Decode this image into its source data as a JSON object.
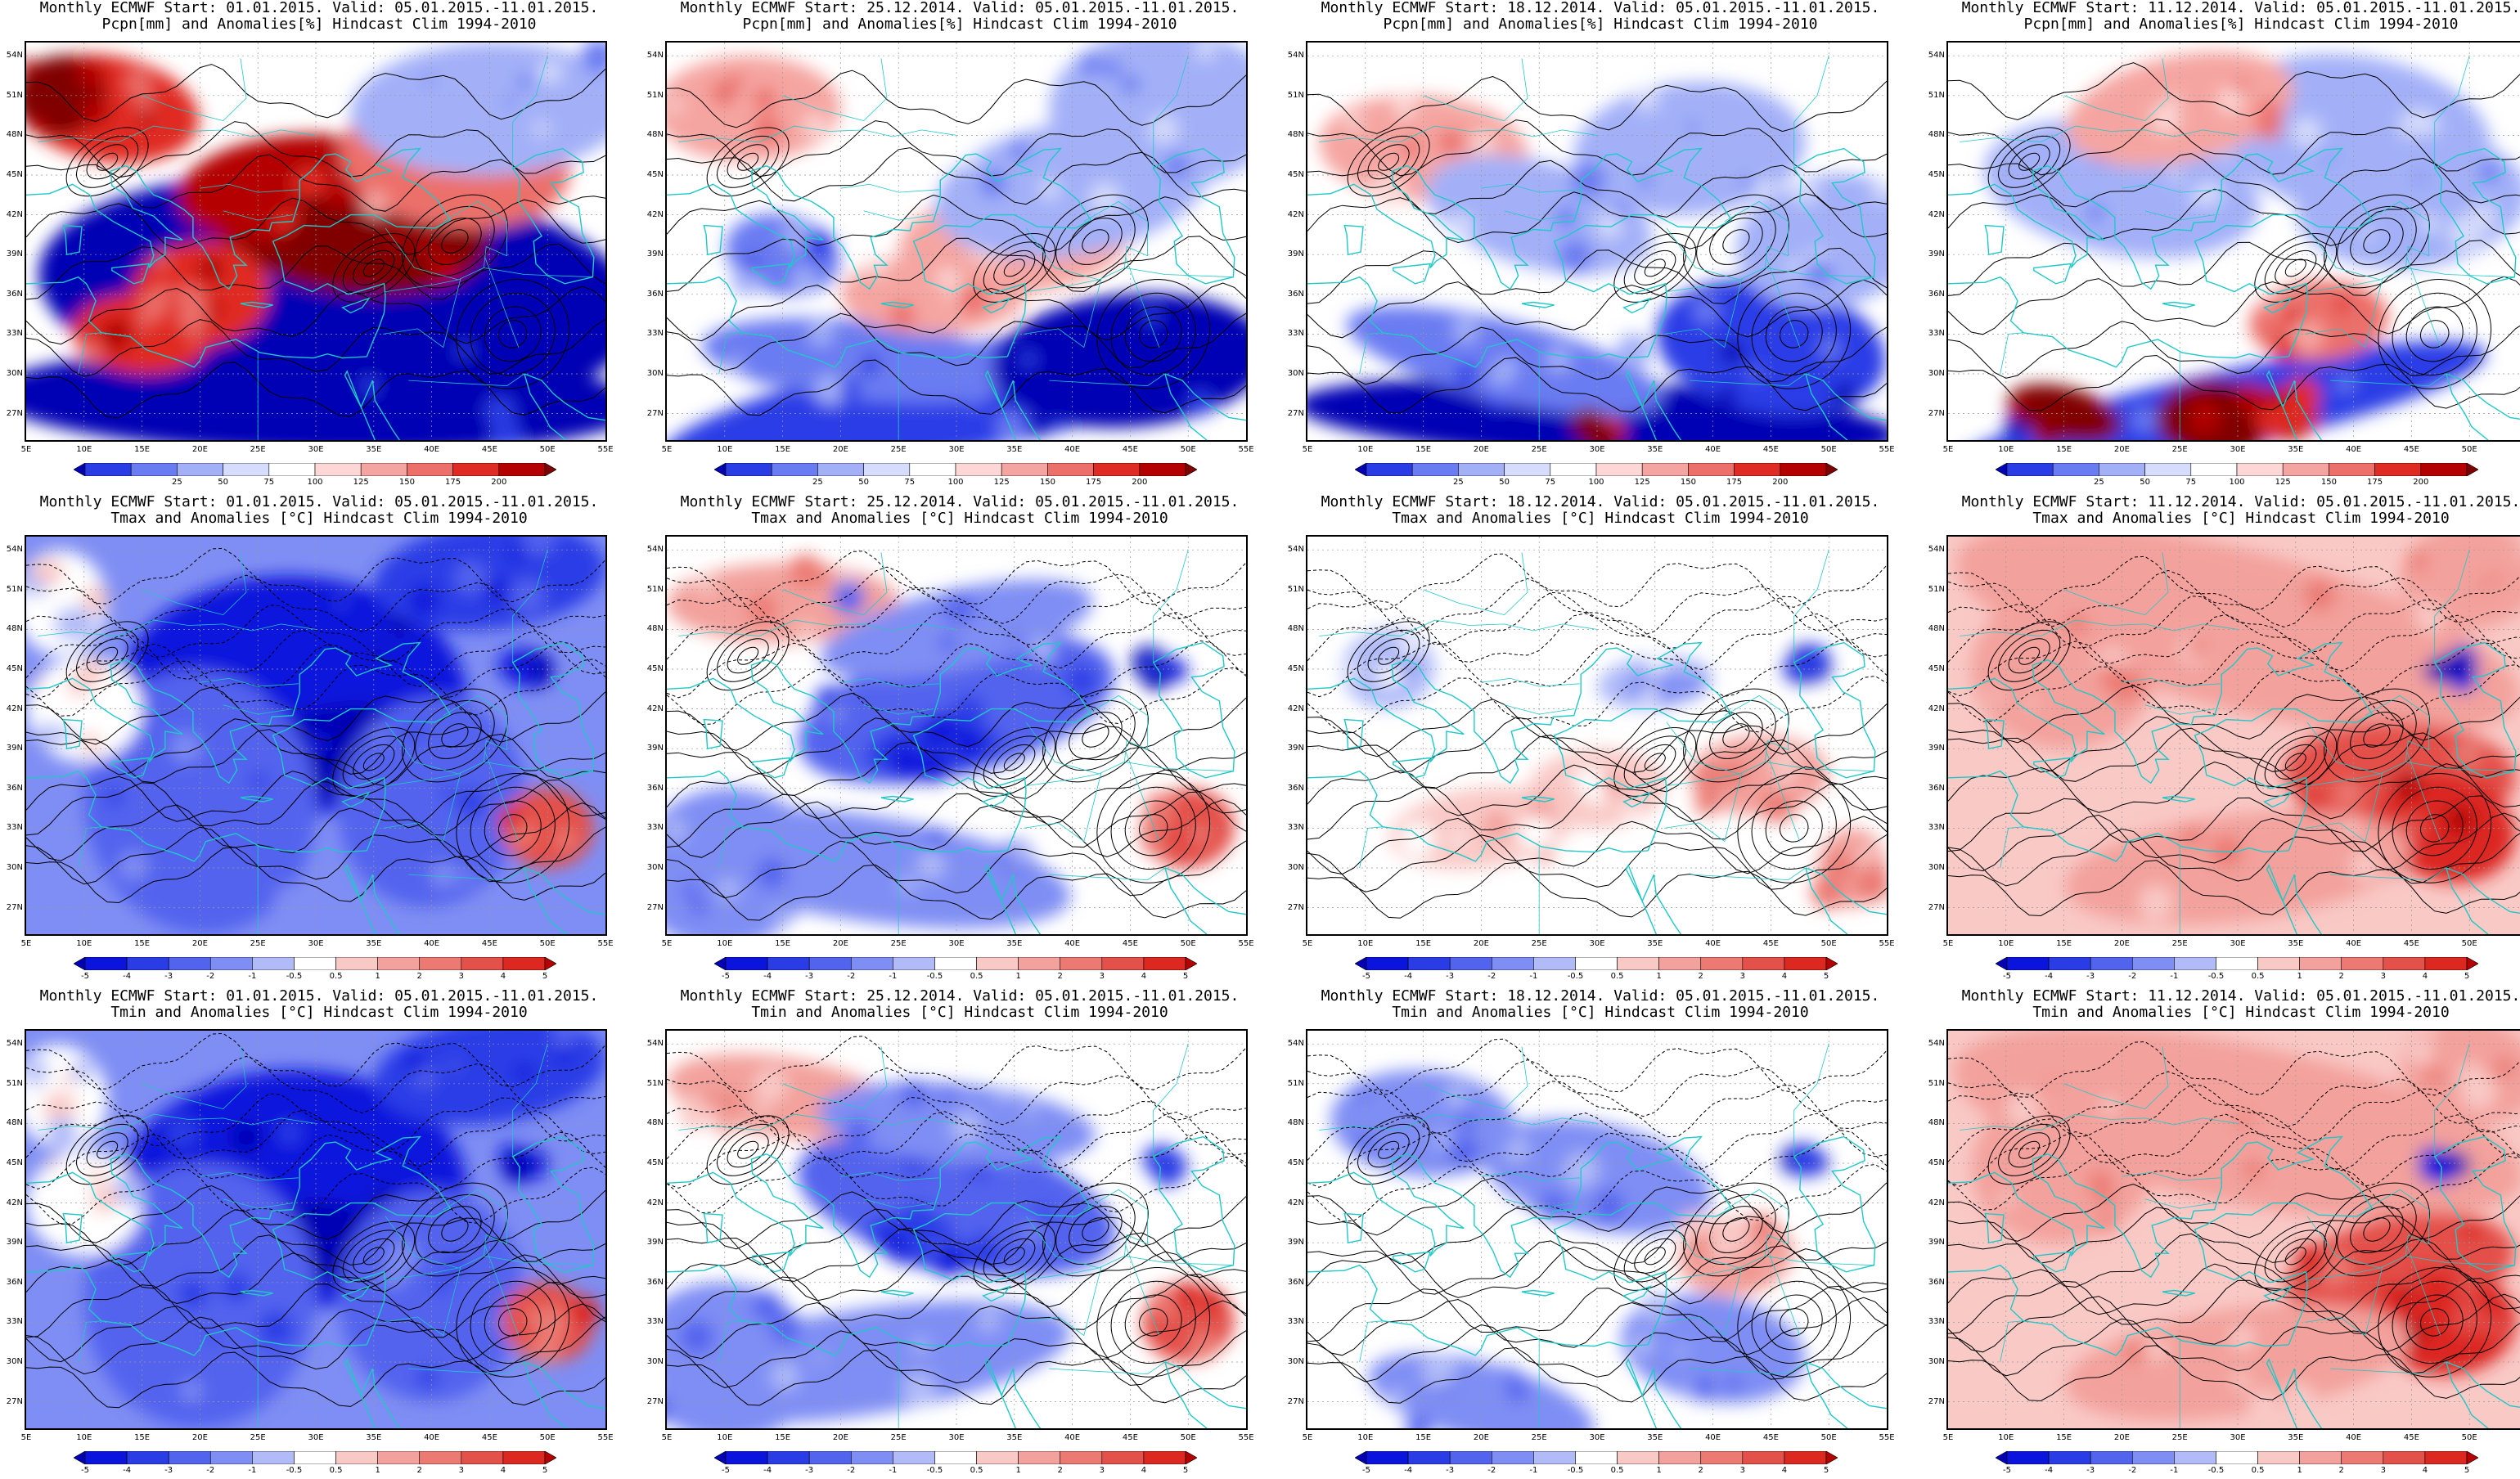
{
  "figure": {
    "columns": [
      {
        "start": "01.01.2015",
        "valid": "05.01.2015.-11.01.2015."
      },
      {
        "start": "25.12.2014",
        "valid": "05.01.2015.-11.01.2015."
      },
      {
        "start": "18.12.2014",
        "valid": "05.01.2015.-11.01.2015."
      },
      {
        "start": "11.12.2014",
        "valid": "05.01.2015.-11.01.2015."
      }
    ],
    "panels": [
      {
        "line1": "Monthly ECMWF Start: 01.01.2015. Valid: 05.01.2015.-11.01.2015.",
        "line2": "Pcpn[mm] and Anomalies[%] Hindcast Clim 1994-2010",
        "field": "precip",
        "anom_pattern": "wet-east"
      },
      {
        "line1": "Monthly ECMWF Start: 25.12.2014. Valid: 05.01.2015.-11.01.2015.",
        "line2": "Pcpn[mm] and Anomalies[%] Hindcast Clim 1994-2010",
        "field": "precip",
        "anom_pattern": "mixed"
      },
      {
        "line1": "Monthly ECMWF Start: 18.12.2014. Valid: 05.01.2015.-11.01.2015.",
        "line2": "Pcpn[mm] and Anomalies[%] Hindcast Clim 1994-2010",
        "field": "precip",
        "anom_pattern": "dry-south"
      },
      {
        "line1": "Monthly ECMWF Start: 11.12.2014. Valid: 05.01.2015.-11.01.2015.",
        "line2": "Pcpn[mm] and Anomalies[%] Hindcast Clim 1994-2010",
        "field": "precip",
        "anom_pattern": "wet-africa"
      },
      {
        "line1": "Monthly ECMWF Start: 01.01.2015. Valid: 05.01.2015.-11.01.2015.",
        "line2": "Tmax and Anomalies [°C] Hindcast Clim 1994-2010",
        "field": "temp",
        "anom_pattern": "cold-strong"
      },
      {
        "line1": "Monthly ECMWF Start: 25.12.2014. Valid: 05.01.2015.-11.01.2015.",
        "line2": "Tmax and Anomalies [°C] Hindcast Clim 1994-2010",
        "field": "temp",
        "anom_pattern": "cold-moderate"
      },
      {
        "line1": "Monthly ECMWF Start: 18.12.2014. Valid: 05.01.2015.-11.01.2015.",
        "line2": "Tmax and Anomalies [°C] Hindcast Clim 1994-2010",
        "field": "temp",
        "anom_pattern": "neutral"
      },
      {
        "line1": "Monthly ECMWF Start: 11.12.2014. Valid: 05.01.2015.-11.01.2015.",
        "line2": "Tmax and Anomalies [°C] Hindcast Clim 1994-2010",
        "field": "temp",
        "anom_pattern": "warm"
      },
      {
        "line1": "Monthly ECMWF Start: 01.01.2015. Valid: 05.01.2015.-11.01.2015.",
        "line2": "Tmin and Anomalies [°C] Hindcast Clim 1994-2010",
        "field": "temp",
        "anom_pattern": "cold-strong"
      },
      {
        "line1": "Monthly ECMWF Start: 25.12.2014. Valid: 05.01.2015.-11.01.2015.",
        "line2": "Tmin and Anomalies [°C] Hindcast Clim 1994-2010",
        "field": "temp",
        "anom_pattern": "cold-moderate"
      },
      {
        "line1": "Monthly ECMWF Start: 18.12.2014. Valid: 05.01.2015.-11.01.2015.",
        "line2": "Tmin and Anomalies [°C] Hindcast Clim 1994-2010",
        "field": "temp",
        "anom_pattern": "neutral-cold"
      },
      {
        "line1": "Monthly ECMWF Start: 11.12.2014. Valid: 05.01.2015.-11.01.2015.",
        "line2": "Tmin and Anomalies [°C] Hindcast Clim 1994-2010",
        "field": "temp",
        "anom_pattern": "warm"
      }
    ],
    "lat_labels": [
      "54N",
      "51N",
      "48N",
      "45N",
      "42N",
      "39N",
      "36N",
      "33N",
      "30N",
      "27N"
    ],
    "lon_labels": [
      "5E",
      "10E",
      "15E",
      "20E",
      "25E",
      "30E",
      "35E",
      "40E",
      "45E",
      "50E",
      "55E"
    ],
    "extent": {
      "lon_min": 5,
      "lon_max": 55,
      "lat_min": 25,
      "lat_max": 55
    },
    "colorbars": {
      "precip": {
        "ticks": [
          "25",
          "50",
          "75",
          "100",
          "125",
          "150",
          "175",
          "200"
        ],
        "colors": [
          "#0000b4",
          "#2a3ce6",
          "#6a7cf2",
          "#a3b0f8",
          "#d6dcfb",
          "#ffffff",
          "#fcd7d5",
          "#f5a5a1",
          "#ec6f6a",
          "#e02a24",
          "#b40000",
          "#800000"
        ]
      },
      "temp": {
        "ticks": [
          "-5",
          "-4",
          "-3",
          "-2",
          "-1",
          "-0.5",
          "0.5",
          "1",
          "2",
          "3",
          "4",
          "5"
        ],
        "colors": [
          "#0000b4",
          "#0a14dc",
          "#2a3ce6",
          "#5264ee",
          "#7f8ef4",
          "#b0bbf8",
          "#ffffff",
          "#f9c9c6",
          "#f3a19c",
          "#ec7a73",
          "#e4504a",
          "#dc2820",
          "#b40000"
        ]
      }
    },
    "colors": {
      "coast": "#20c8c8",
      "contour": "#000000",
      "grid": "#999999"
    }
  }
}
